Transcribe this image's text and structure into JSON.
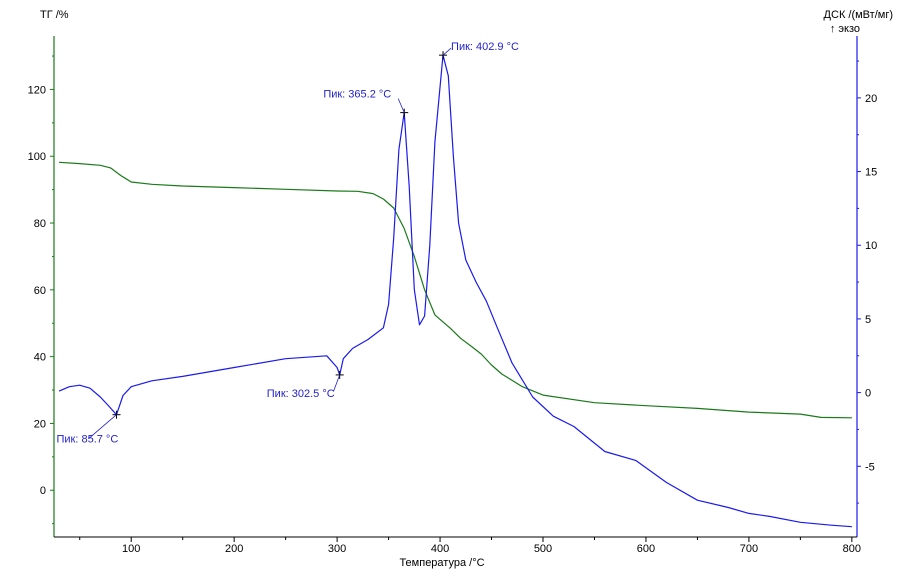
{
  "chart_data": {
    "type": "line",
    "xlabel": "Температура /°C",
    "y_left_label": "ТГ /%",
    "y_right_label": "ДСК /(мВт/мг)",
    "y_right_sublabel": "↑ экзо",
    "xlim": [
      25,
      805
    ],
    "y_left_lim": [
      -14,
      136
    ],
    "y_right_lim": [
      -9.8,
      24.2
    ],
    "x_ticks": [
      100,
      200,
      300,
      400,
      500,
      600,
      700,
      800
    ],
    "y_left_ticks": [
      0,
      20,
      40,
      60,
      80,
      100,
      120
    ],
    "y_right_ticks": [
      -5,
      0,
      5,
      10,
      15,
      20
    ],
    "colors": {
      "tg": "#1a7a1a",
      "dsc": "#1a1aee",
      "axis_left": "#1a7a1a",
      "axis_right": "#1a1aee",
      "axis_bottom": "#000000"
    },
    "series": [
      {
        "axis": "left",
        "color": "#1a7a1a",
        "x": [
          30,
          50,
          70,
          80,
          90,
          100,
          120,
          150,
          200,
          250,
          300,
          320,
          335,
          345,
          355,
          365,
          375,
          385,
          395,
          410,
          420,
          430,
          440,
          450,
          460,
          480,
          500,
          550,
          600,
          650,
          700,
          750,
          770,
          800
        ],
        "y": [
          98.2,
          97.8,
          97.3,
          96.5,
          94.2,
          92.3,
          91.6,
          91.1,
          90.6,
          90.1,
          89.6,
          89.5,
          88.8,
          87.2,
          84.5,
          78.5,
          70.0,
          60.0,
          52.5,
          48.5,
          45.5,
          43.2,
          40.8,
          37.5,
          34.8,
          31.0,
          28.5,
          26.2,
          25.3,
          24.5,
          23.4,
          22.8,
          21.8,
          21.7
        ]
      },
      {
        "axis": "right",
        "color": "#1a1aee",
        "x": [
          30,
          40,
          50,
          60,
          70,
          78,
          85.7,
          92,
          100,
          120,
          150,
          200,
          250,
          290,
          300,
          302.5,
          306,
          315,
          330,
          345,
          350,
          355,
          360,
          365.2,
          370,
          375,
          380,
          385,
          390,
          395,
          402.9,
          408,
          413,
          418,
          425,
          435,
          445,
          455,
          470,
          490,
          510,
          530,
          560,
          590,
          620,
          650,
          680,
          700,
          720,
          750,
          780,
          800
        ],
        "y": [
          0.1,
          0.4,
          0.5,
          0.3,
          -0.3,
          -0.9,
          -1.5,
          -0.2,
          0.4,
          0.8,
          1.1,
          1.7,
          2.3,
          2.5,
          1.7,
          1.2,
          2.3,
          3.0,
          3.6,
          4.4,
          6.0,
          10.5,
          16.5,
          19.0,
          14.0,
          7.0,
          4.6,
          5.2,
          10.0,
          17.0,
          22.9,
          21.5,
          16.0,
          11.5,
          9.0,
          7.5,
          6.2,
          4.5,
          2.0,
          -0.3,
          -1.6,
          -2.3,
          -4.0,
          -4.6,
          -6.1,
          -7.3,
          -7.8,
          -8.2,
          -8.4,
          -8.8,
          -9.0,
          -9.1
        ]
      }
    ],
    "peaks": [
      {
        "id": "85",
        "label": "Пик: 85.7 °C",
        "x": 85.7,
        "y": -1.5
      },
      {
        "id": "302",
        "label": "Пик: 302.5 °C",
        "x": 302.5,
        "y": 1.2
      },
      {
        "id": "365",
        "label": "Пик: 365.2 °C",
        "x": 365.2,
        "y": 19.0
      },
      {
        "id": "402",
        "label": "Пик: 402.9 °C",
        "x": 402.9,
        "y": 22.9
      }
    ]
  }
}
